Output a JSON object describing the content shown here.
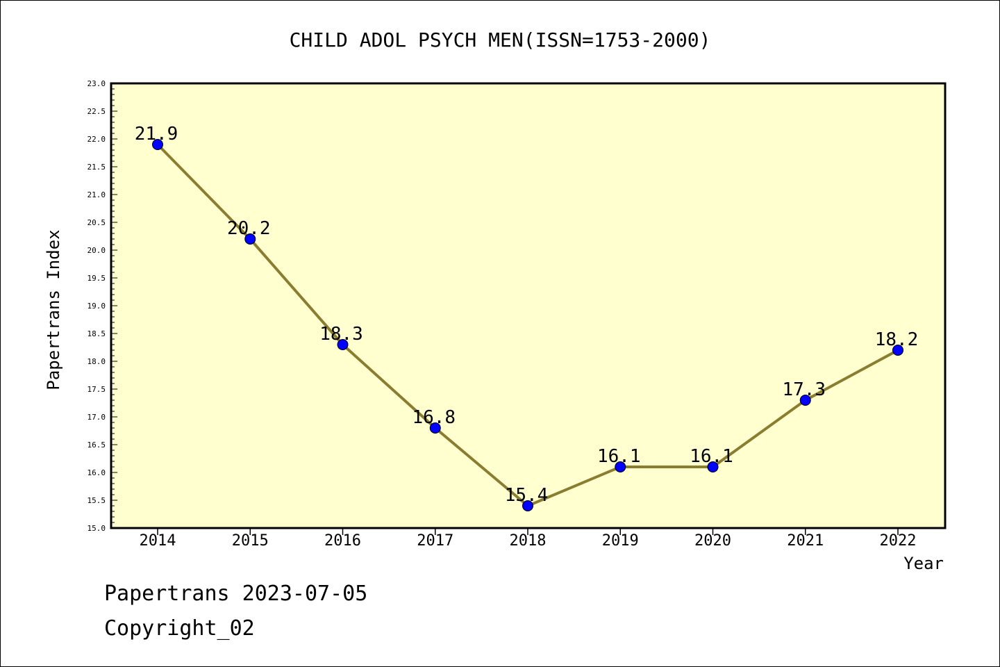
{
  "chart_data": {
    "type": "line",
    "title": "CHILD ADOL PSYCH MEN(ISSN=1753-2000)",
    "xlabel": "Year",
    "ylabel": "Papertrans Index",
    "x": [
      "2014",
      "2015",
      "2016",
      "2017",
      "2018",
      "2019",
      "2020",
      "2021",
      "2022"
    ],
    "values": [
      21.9,
      20.2,
      18.3,
      16.8,
      15.4,
      16.1,
      16.1,
      17.3,
      18.2
    ],
    "data_labels": [
      "21.9",
      "20.2",
      "18.3",
      "16.8",
      "15.4",
      "16.1",
      "16.1",
      "17.3",
      "18.2"
    ],
    "ylim": [
      15.0,
      23.0
    ],
    "yticks": [
      "15.0",
      "15.5",
      "16.0",
      "16.5",
      "17.0",
      "17.5",
      "18.0",
      "18.5",
      "19.0",
      "19.5",
      "20.0",
      "20.5",
      "21.0",
      "21.5",
      "22.0",
      "22.5",
      "23.0"
    ],
    "grid": false,
    "colors": {
      "plot_background": "#ffffd0",
      "line": "#8b7d30",
      "marker": "#0000ff"
    }
  },
  "footer": {
    "line1": "Papertrans 2023-07-05",
    "line2": "Copyright_02"
  }
}
